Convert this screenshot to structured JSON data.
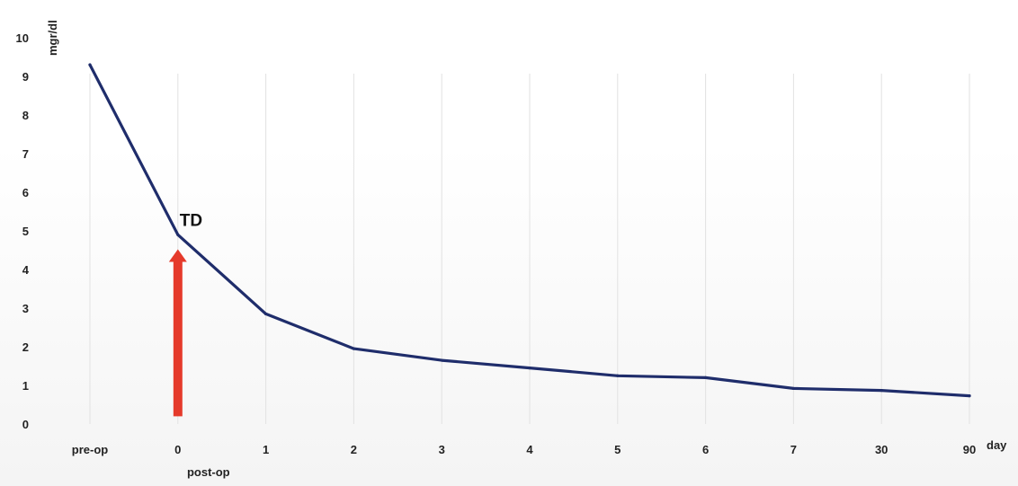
{
  "chart_data": {
    "type": "line",
    "title": "",
    "ylabel": "mgr/dl",
    "xlabel": "day",
    "ylim": [
      0,
      10
    ],
    "yticks": [
      "0",
      "1",
      "2",
      "3",
      "4",
      "5",
      "6",
      "7",
      "8",
      "9",
      "10"
    ],
    "categories": [
      "pre-op",
      "0",
      "1",
      "2",
      "3",
      "4",
      "5",
      "6",
      "7",
      "30",
      "90"
    ],
    "sub_labels": [
      {
        "category": "0",
        "text": "post-op"
      }
    ],
    "series": [
      {
        "values": [
          9.3,
          4.9,
          2.85,
          1.95,
          1.65,
          1.45,
          1.25,
          1.2,
          0.92,
          0.87,
          0.73
        ],
        "color": "#1f2d6b"
      }
    ],
    "grid": {
      "vertical": true,
      "horizontal": false
    },
    "annotations": [
      {
        "type": "text",
        "text": "TD",
        "category": "0",
        "value": 4.9
      },
      {
        "type": "arrow",
        "category": "0",
        "from_value": 0.2,
        "to_value": 4.5,
        "color": "#e53a2b"
      }
    ]
  }
}
